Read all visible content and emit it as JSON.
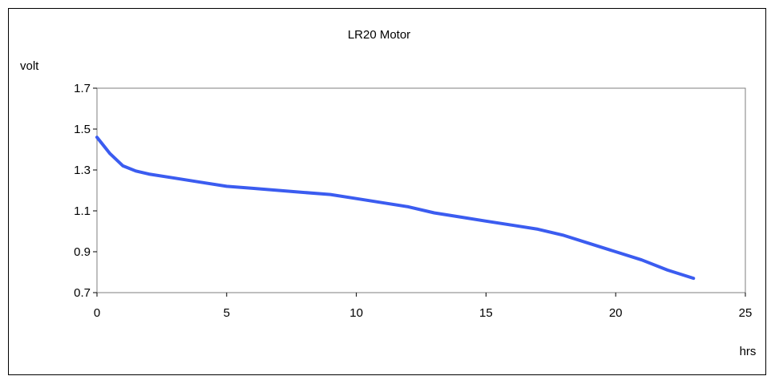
{
  "chart_data": {
    "type": "line",
    "title": "LR20   Motor",
    "xlabel": "hrs",
    "ylabel": "volt",
    "xlim": [
      0,
      25
    ],
    "ylim": [
      0.7,
      1.7
    ],
    "xticks": [
      0,
      5,
      10,
      15,
      20,
      25
    ],
    "yticks": [
      0.7,
      0.9,
      1.1,
      1.3,
      1.5,
      1.7
    ],
    "ytick_labels": [
      "0.7",
      "0.9",
      "1.1",
      "1.3",
      "1.5",
      "1.7"
    ],
    "xtick_labels": [
      "0",
      "5",
      "10",
      "15",
      "20",
      "25"
    ],
    "grid": false,
    "legend": "none",
    "series": [
      {
        "color": "#3b5cf0",
        "x": [
          0,
          0.5,
          1.0,
          1.5,
          2.0,
          3.0,
          4.0,
          5.0,
          6.0,
          7.0,
          8.0,
          9.0,
          10.0,
          11.0,
          12.0,
          13.0,
          14.0,
          15.0,
          16.0,
          17.0,
          18.0,
          19.0,
          20.0,
          21.0,
          22.0,
          23.0
        ],
        "y": [
          1.46,
          1.38,
          1.32,
          1.295,
          1.28,
          1.26,
          1.24,
          1.22,
          1.21,
          1.2,
          1.19,
          1.18,
          1.16,
          1.14,
          1.12,
          1.09,
          1.07,
          1.05,
          1.03,
          1.01,
          0.98,
          0.94,
          0.9,
          0.86,
          0.81,
          0.77
        ]
      }
    ]
  }
}
